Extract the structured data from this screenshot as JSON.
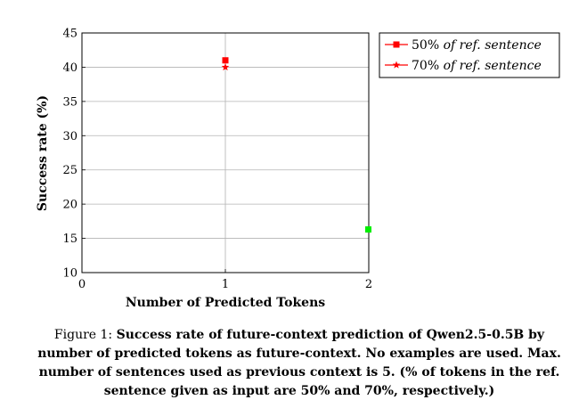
{
  "chart_data": {
    "type": "scatter",
    "xlabel": "Number of Predicted Tokens",
    "ylabel": "Success rate (%)",
    "xlim": [
      0,
      2
    ],
    "ylim": [
      10,
      45
    ],
    "x_ticks": [
      "0",
      "1",
      "2"
    ],
    "y_ticks": [
      "10",
      "15",
      "20",
      "25",
      "30",
      "35",
      "40",
      "45"
    ],
    "grid": true,
    "legend_position": "top-right outside",
    "series": [
      {
        "name": "50% of ref. sentence",
        "name_prefix": "50%",
        "name_italic": "of ref. sentence",
        "marker": "square",
        "color": "#ff0000",
        "points": [
          {
            "x": 1,
            "y": 41.0
          },
          {
            "x": 2,
            "y": 16.3
          }
        ]
      },
      {
        "name": "70% of ref. sentence",
        "name_prefix": "70%",
        "name_italic": "of ref. sentence",
        "marker": "star",
        "color": "#ff0000",
        "points": [
          {
            "x": 1,
            "y": 40.0
          }
        ]
      }
    ],
    "highlight_color": "#00ee00",
    "highlight_point": {
      "x": 2,
      "y": 16.3
    }
  },
  "caption": {
    "number": "Figure 1:",
    "text": "Success rate of future-context prediction of Qwen2.5-0.5B by number of predicted tokens as future-context. No examples are used. Max. number of sentences used as previous context is 5. (% of tokens in the ref. sentence given as input are 50% and 70%, respectively.)"
  }
}
